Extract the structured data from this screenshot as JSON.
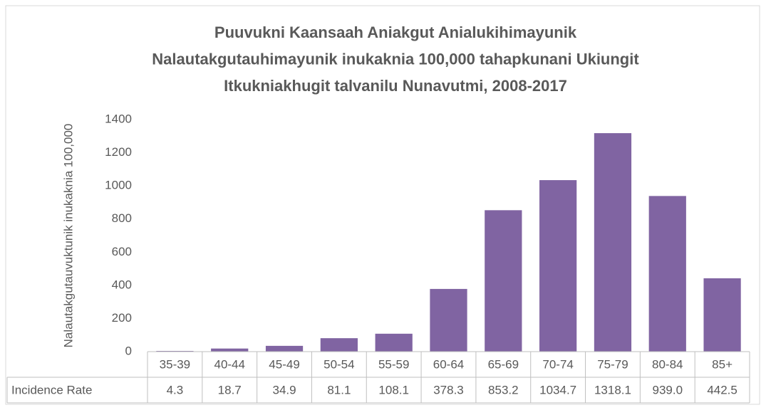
{
  "chart_data": {
    "type": "bar",
    "title": [
      "Puuvukni Kaansaah Aniakgut Anialukihimayunik",
      "Nalautakgutauhimayunik inukaknia 100,000 tahapkunani Ukiungit",
      "Itkukniakhugit talvanilu Nunavutmi, 2008-2017"
    ],
    "y_label": "Nalautakgutauvuktunik inukaknia 100,000",
    "categories": [
      "35-39",
      "40-44",
      "45-49",
      "50-54",
      "55-59",
      "60-64",
      "65-69",
      "70-74",
      "75-79",
      "80-84",
      "85+"
    ],
    "series": [
      {
        "name": "Incidence Rate",
        "color": "#8064a2",
        "values": [
          4.3,
          18.7,
          34.9,
          81.1,
          108.1,
          378.3,
          853.2,
          1034.7,
          1318.1,
          939.0,
          442.5
        ],
        "value_labels": [
          "4.3",
          "18.7",
          "34.9",
          "81.1",
          "108.1",
          "378.3",
          "853.2",
          "1034.7",
          "1318.1",
          "939.0",
          "442.5"
        ]
      }
    ],
    "ylim": [
      0,
      1400
    ],
    "yticks": [
      0,
      200,
      400,
      600,
      800,
      1000,
      1200,
      1400
    ],
    "grid": false,
    "data_table": true
  }
}
